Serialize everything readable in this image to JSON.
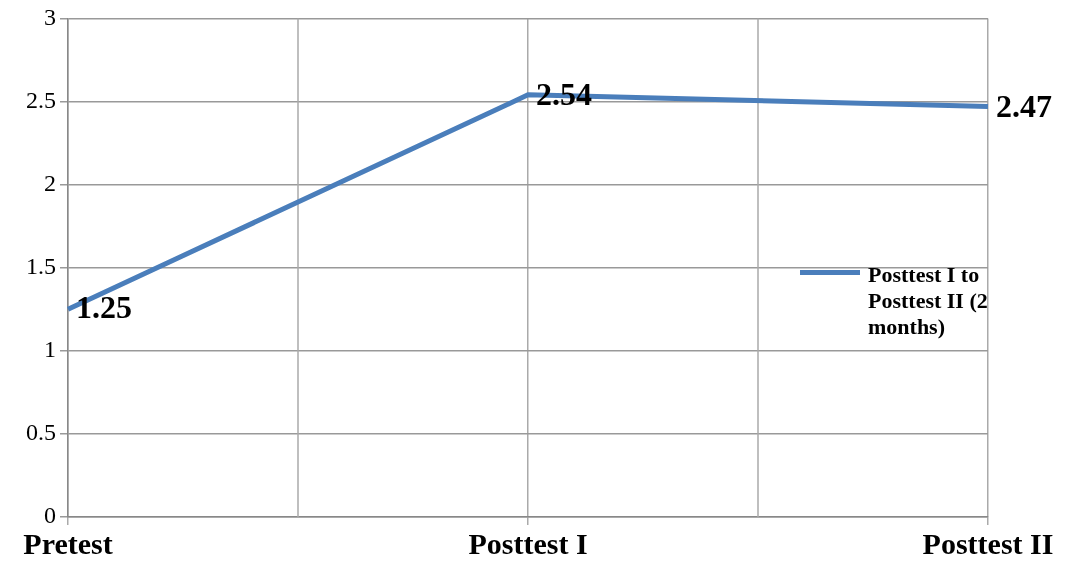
{
  "chart_data": {
    "type": "line",
    "categories": [
      "Pretest",
      "Posttest I",
      "Posttest II"
    ],
    "series": [
      {
        "name": "Posttest I to Posttest II (2 months)",
        "color": "#4a7ebb",
        "values": [
          1.25,
          2.54,
          2.47
        ]
      }
    ],
    "ylim": [
      0,
      3
    ],
    "yticks": [
      0,
      0.5,
      1,
      1.5,
      2,
      2.5,
      3
    ],
    "grid": true,
    "legend": "right",
    "data_labels": true
  }
}
